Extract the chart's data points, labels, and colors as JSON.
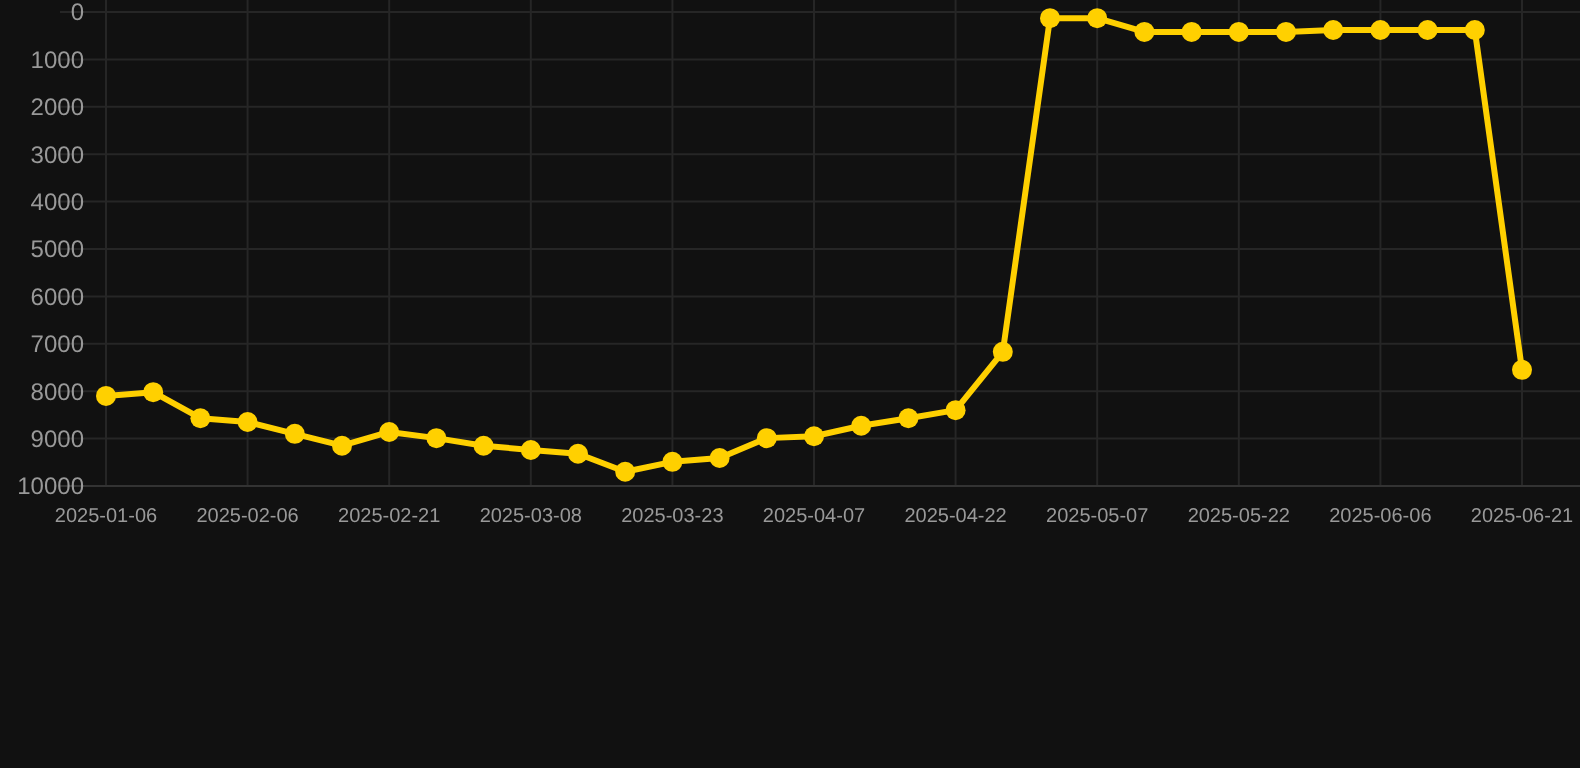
{
  "chart_data": {
    "type": "line",
    "categories": [
      "2025-01-06",
      null,
      null,
      "2025-02-06",
      null,
      null,
      "2025-02-21",
      null,
      null,
      "2025-03-08",
      null,
      null,
      "2025-03-23",
      null,
      null,
      "2025-04-07",
      null,
      null,
      "2025-04-22",
      null,
      null,
      "2025-05-07",
      null,
      null,
      "2025-05-22",
      null,
      null,
      "2025-06-06",
      null,
      null,
      "2025-06-21"
    ],
    "series": [
      {
        "color": "#ffd000",
        "values": [
          8100,
          8020,
          8570,
          8650,
          8900,
          9150,
          8860,
          8990,
          9150,
          9240,
          9320,
          9700,
          9490,
          9410,
          8990,
          8950,
          8730,
          8570,
          8400,
          7170,
          130,
          130,
          420,
          420,
          420,
          420,
          380,
          380,
          380,
          380,
          7550
        ]
      }
    ],
    "ylim": [
      10000,
      0
    ],
    "yticks": [
      0,
      1000,
      2000,
      3000,
      4000,
      5000,
      6000,
      7000,
      8000,
      9000,
      10000
    ],
    "grid": true,
    "marker": "circle",
    "line_style": "solid"
  }
}
